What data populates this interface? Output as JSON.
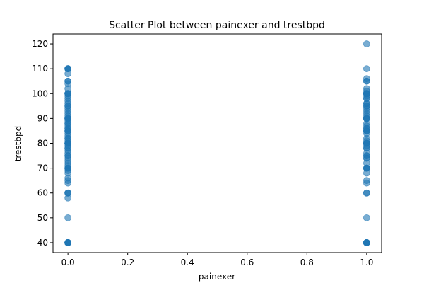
{
  "chart_data": {
    "type": "scatter",
    "title": "Scatter Plot between painexer and trestbpd",
    "xlabel": "painexer",
    "ylabel": "trestbpd",
    "xlim": [
      -0.05,
      1.05
    ],
    "ylim": [
      36,
      124
    ],
    "xticks": [
      "0.0",
      "0.2",
      "0.4",
      "0.6",
      "0.8",
      "1.0"
    ],
    "yticks": [
      "40",
      "50",
      "60",
      "70",
      "80",
      "90",
      "100",
      "110",
      "120"
    ],
    "grid": false,
    "point_color": "#1f77b4",
    "point_alpha": 0.6,
    "series": [
      {
        "x": [
          0,
          0,
          0,
          0,
          0,
          0,
          0,
          0,
          0,
          0,
          0,
          0,
          0,
          0,
          0,
          0,
          0,
          0,
          0,
          0,
          0,
          0,
          0,
          0,
          0,
          0,
          0,
          0,
          0,
          0,
          0,
          0,
          0,
          0,
          0,
          0,
          0,
          0,
          0,
          0,
          0,
          0,
          0,
          0,
          0,
          0,
          0,
          0,
          0,
          0,
          0,
          0,
          0,
          0,
          0,
          0,
          0,
          0,
          0,
          0,
          0,
          0,
          0,
          0,
          0,
          0,
          0,
          0,
          0,
          0,
          0,
          0,
          0,
          0,
          0,
          0,
          0,
          0,
          0,
          0
        ],
        "y": [
          40,
          40,
          40,
          40,
          40,
          40,
          40,
          40,
          40,
          50,
          58,
          60,
          60,
          60,
          64,
          65,
          66,
          68,
          69,
          70,
          70,
          70,
          70,
          71,
          72,
          73,
          74,
          75,
          75,
          76,
          77,
          78,
          78,
          79,
          80,
          80,
          80,
          80,
          80,
          81,
          82,
          82,
          83,
          84,
          85,
          85,
          85,
          86,
          86,
          87,
          88,
          88,
          89,
          90,
          90,
          90,
          90,
          91,
          92,
          93,
          94,
          95,
          95,
          96,
          97,
          98,
          99,
          100,
          100,
          100,
          100,
          102,
          104,
          105,
          105,
          108,
          110,
          110,
          110,
          110
        ]
      },
      {
        "x": [
          1,
          1,
          1,
          1,
          1,
          1,
          1,
          1,
          1,
          1,
          1,
          1,
          1,
          1,
          1,
          1,
          1,
          1,
          1,
          1,
          1,
          1,
          1,
          1,
          1,
          1,
          1,
          1,
          1,
          1,
          1,
          1,
          1,
          1,
          1,
          1,
          1,
          1,
          1,
          1,
          1,
          1,
          1,
          1,
          1,
          1,
          1,
          1,
          1,
          1,
          1,
          1,
          1,
          1,
          1,
          1,
          1,
          1,
          1,
          1,
          1,
          1,
          1,
          1,
          1,
          1
        ],
        "y": [
          40,
          40,
          40,
          40,
          40,
          40,
          40,
          50,
          60,
          60,
          64,
          65,
          68,
          70,
          70,
          70,
          70,
          72,
          74,
          75,
          75,
          76,
          78,
          78,
          79,
          80,
          80,
          80,
          80,
          81,
          82,
          84,
          85,
          85,
          85,
          86,
          87,
          88,
          90,
          90,
          90,
          90,
          91,
          92,
          93,
          94,
          95,
          95,
          96,
          98,
          98,
          99,
          100,
          100,
          100,
          100,
          101,
          102,
          105,
          105,
          106,
          110,
          120,
          74,
          86,
          96
        ]
      }
    ]
  }
}
